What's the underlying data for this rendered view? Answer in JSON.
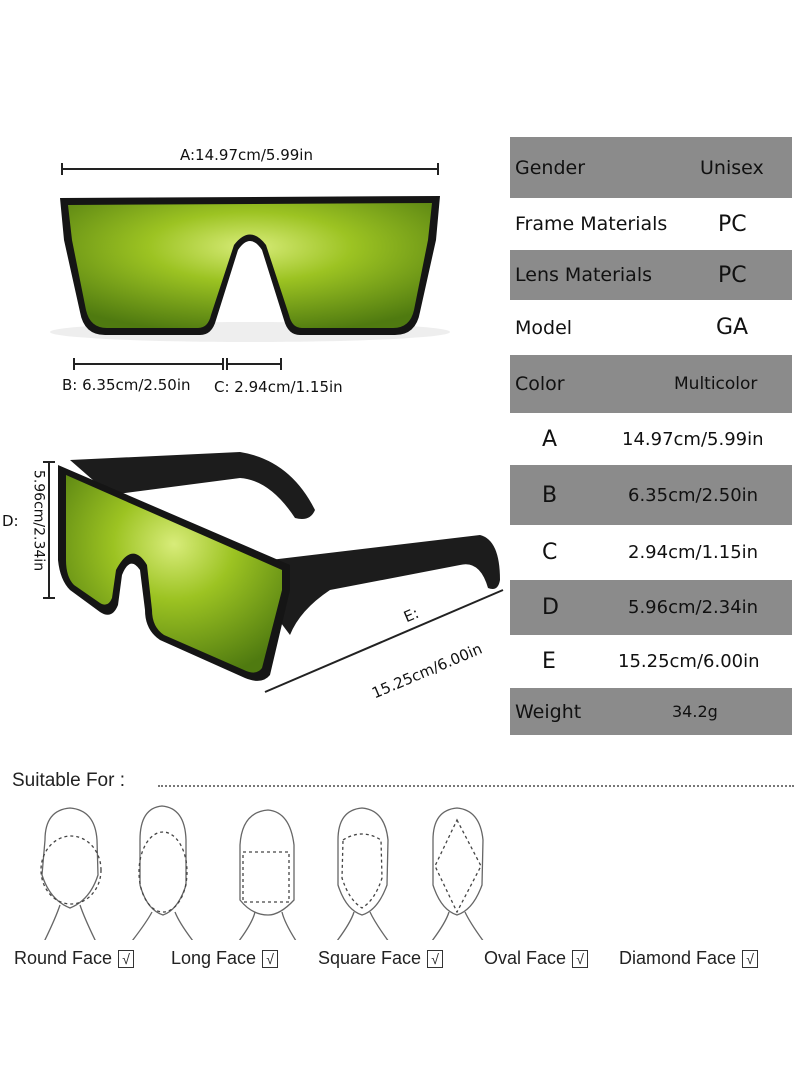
{
  "dimensions": {
    "a": "A:14.97cm/5.99in",
    "b": "B: 6.35cm/2.50in",
    "c": "C: 2.94cm/1.15in",
    "d": "D:",
    "d_value": "5.96cm/2.34in",
    "e": "E:",
    "e_value": "15.25cm/6.00in"
  },
  "specs": [
    {
      "label": "Gender",
      "value": "Unisex"
    },
    {
      "label": "Frame Materials",
      "value": "PC"
    },
    {
      "label": "Lens Materials",
      "value": "PC"
    },
    {
      "label": "Model",
      "value": "GA"
    },
    {
      "label": "Color",
      "value": "Multicolor"
    },
    {
      "label": "A",
      "value": "14.97cm/5.99in"
    },
    {
      "label": "B",
      "value": "6.35cm/2.50in"
    },
    {
      "label": "C",
      "value": "2.94cm/1.15in"
    },
    {
      "label": "D",
      "value": "5.96cm/2.34in"
    },
    {
      "label": "E",
      "value": "15.25cm/6.00in"
    },
    {
      "label": "Weight",
      "value": "34.2g"
    }
  ],
  "suitable": {
    "title": "Suitable For :",
    "check": "√",
    "faces": [
      "Round Face",
      "Long Face",
      "Square Face",
      "Oval Face",
      "Diamond Face"
    ]
  },
  "colors": {
    "table_gray": "#8b8b8b",
    "lens_green": "#8fb31e",
    "frame": "#151515"
  }
}
